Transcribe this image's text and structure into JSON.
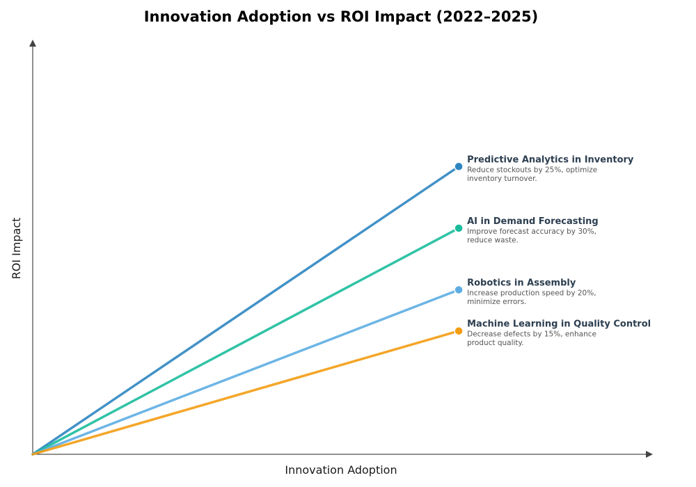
{
  "chart_data": {
    "type": "line",
    "title": "Innovation Adoption vs ROI Impact (2022–2025)",
    "xlabel": "Innovation Adoption",
    "ylabel": "ROI Impact",
    "xlim": [
      0,
      1
    ],
    "ylim": [
      0,
      1
    ],
    "grid": false,
    "legend": "annotations at line ends",
    "series": [
      {
        "name": "Predictive Analytics in Inventory",
        "description": [
          "Reduce stockouts by 25%, optimize",
          "inventory turnover."
        ],
        "x": [
          0,
          0.687
        ],
        "y": [
          0,
          0.7
        ],
        "color": "#2e86c1"
      },
      {
        "name": "AI in Demand Forecasting",
        "description": [
          "Improve forecast accuracy by 30%,",
          "reduce waste."
        ],
        "x": [
          0,
          0.687
        ],
        "y": [
          0,
          0.55
        ],
        "color": "#1abc9c"
      },
      {
        "name": "Robotics in Assembly",
        "description": [
          "Increase production speed by 20%,",
          "minimize errors."
        ],
        "x": [
          0,
          0.687
        ],
        "y": [
          0,
          0.4
        ],
        "color": "#5dade2"
      },
      {
        "name": "Machine Learning in Quality Control",
        "description": [
          "Decrease defects by 15%, enhance",
          "product quality."
        ],
        "x": [
          0,
          0.687
        ],
        "y": [
          0,
          0.3
        ],
        "color": "#f39c12"
      }
    ]
  }
}
